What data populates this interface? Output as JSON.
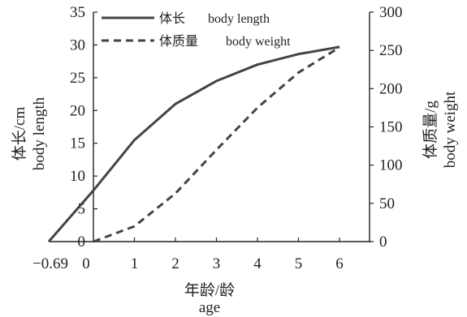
{
  "chart_data": {
    "type": "line",
    "x_ticks": [
      "−0.69",
      "0",
      "1",
      "2",
      "3",
      "4",
      "5",
      "6"
    ],
    "xlabel": [
      "年龄/龄",
      "age"
    ],
    "y_left": {
      "label": [
        "体长/cm",
        "body length"
      ],
      "ylim": [
        0,
        35
      ],
      "ticks": [
        0,
        5,
        10,
        15,
        20,
        25,
        30,
        35
      ]
    },
    "y_right": {
      "label": [
        "体质量/g",
        "body weight"
      ],
      "ylim": [
        0,
        300
      ],
      "ticks": [
        0,
        50,
        100,
        150,
        200,
        250,
        300
      ]
    },
    "series": [
      {
        "name": "体长 body length",
        "axis": "left",
        "style": "solid",
        "color": "#444444",
        "points": [
          [
            -0.69,
            0
          ],
          [
            0,
            7.8
          ],
          [
            1,
            15.5
          ],
          [
            2,
            21
          ],
          [
            3,
            24.5
          ],
          [
            4,
            27
          ],
          [
            5,
            28.6
          ],
          [
            6,
            29.7
          ]
        ]
      },
      {
        "name": "体质量 body weight",
        "axis": "right",
        "style": "dashed",
        "color": "#444444",
        "points": [
          [
            0,
            0
          ],
          [
            0.1,
            2
          ],
          [
            1,
            20
          ],
          [
            2,
            63
          ],
          [
            3,
            120
          ],
          [
            4,
            175
          ],
          [
            5,
            221
          ],
          [
            6,
            254
          ]
        ]
      }
    ],
    "legend": {
      "placement": "top-left",
      "entries": [
        {
          "zh": "体长",
          "en": "body length"
        },
        {
          "zh": "体质量",
          "en": "body weight"
        }
      ]
    },
    "grid": false
  }
}
